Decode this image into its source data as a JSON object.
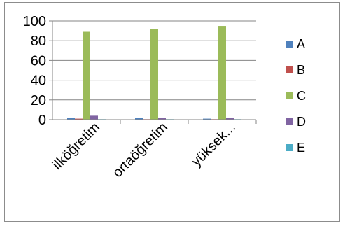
{
  "chart_data": {
    "type": "bar",
    "categories": [
      "ilköğretim",
      "ortaöğretim",
      "yüksek..."
    ],
    "series": [
      {
        "name": "A",
        "color": "#4f81bd",
        "values": [
          1.5,
          1.5,
          1
        ]
      },
      {
        "name": "B",
        "color": "#c0504d",
        "values": [
          1,
          0.5,
          0.5
        ]
      },
      {
        "name": "C",
        "color": "#9bbb59",
        "values": [
          89,
          92,
          95
        ]
      },
      {
        "name": "D",
        "color": "#8064a2",
        "values": [
          4,
          2,
          2
        ]
      },
      {
        "name": "E",
        "color": "#4bacc6",
        "values": [
          0.5,
          0.5,
          0.5
        ]
      }
    ],
    "y_ticks": [
      0,
      20,
      40,
      60,
      80,
      100
    ],
    "ylim": [
      0,
      100
    ],
    "grid": true,
    "legend_position": "right",
    "title": "",
    "xlabel": "",
    "ylabel": ""
  }
}
